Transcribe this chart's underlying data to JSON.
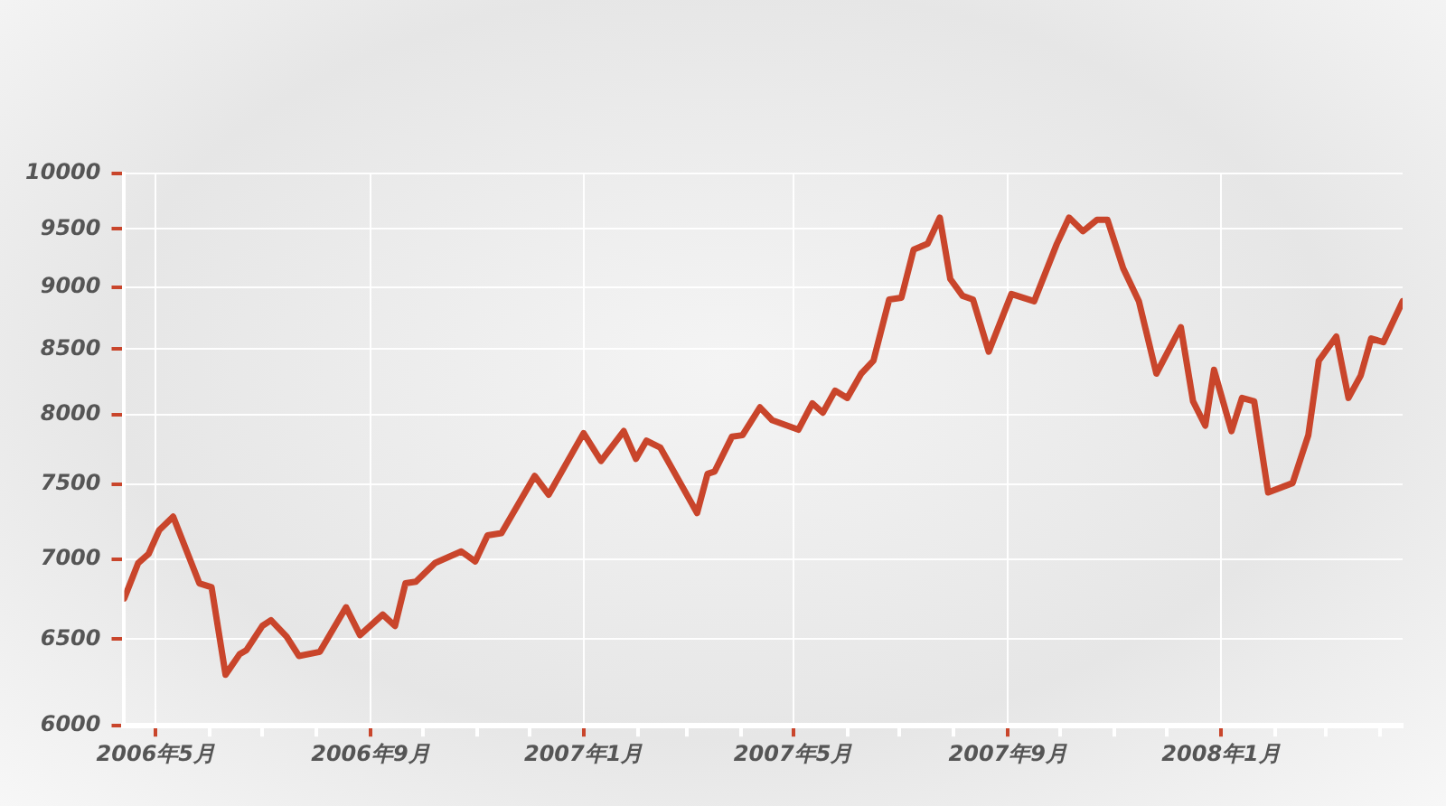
{
  "chart_data": {
    "type": "line",
    "log": "y",
    "grid": true,
    "legend": false,
    "marker": "none",
    "line_style": "solid",
    "xlim": [
      "2006-04-13",
      "2008-04-14"
    ],
    "ylim": [
      6000,
      10000
    ],
    "yticks": [
      6000,
      6500,
      7000,
      7500,
      8000,
      8500,
      9000,
      9500,
      10000
    ],
    "xticks": [
      {
        "value": "2006-05-01",
        "label": "2006年5月"
      },
      {
        "value": "2006-06-01",
        "label": null
      },
      {
        "value": "2006-07-01",
        "label": null
      },
      {
        "value": "2006-08-01",
        "label": null
      },
      {
        "value": "2006-09-01",
        "label": "2006年9月"
      },
      {
        "value": "2006-10-01",
        "label": null
      },
      {
        "value": "2006-11-01",
        "label": null
      },
      {
        "value": "2006-12-01",
        "label": null
      },
      {
        "value": "2007-01-01",
        "label": "2007年1月"
      },
      {
        "value": "2007-02-01",
        "label": null
      },
      {
        "value": "2007-03-01",
        "label": null
      },
      {
        "value": "2007-04-01",
        "label": null
      },
      {
        "value": "2007-05-01",
        "label": "2007年5月"
      },
      {
        "value": "2007-06-01",
        "label": null
      },
      {
        "value": "2007-07-01",
        "label": null
      },
      {
        "value": "2007-08-01",
        "label": null
      },
      {
        "value": "2007-09-01",
        "label": "2007年9月"
      },
      {
        "value": "2007-10-01",
        "label": null
      },
      {
        "value": "2007-11-01",
        "label": null
      },
      {
        "value": "2007-12-01",
        "label": null
      },
      {
        "value": "2008-01-01",
        "label": "2008年1月"
      },
      {
        "value": "2008-02-01",
        "label": null
      },
      {
        "value": "2008-03-01",
        "label": null
      },
      {
        "value": "2008-04-01",
        "label": null
      }
    ],
    "x": [
      "2006-04-13",
      "2006-04-21",
      "2006-04-27",
      "2006-05-03",
      "2006-05-11",
      "2006-05-26",
      "2006-06-02",
      "2006-06-10",
      "2006-06-18",
      "2006-06-22",
      "2006-07-01",
      "2006-07-06",
      "2006-07-15",
      "2006-07-22",
      "2006-08-03",
      "2006-08-18",
      "2006-08-26",
      "2006-09-08",
      "2006-09-15",
      "2006-09-21",
      "2006-09-27",
      "2006-10-08",
      "2006-10-23",
      "2006-10-31",
      "2006-11-07",
      "2006-11-15",
      "2006-12-04",
      "2006-12-12",
      "2007-01-01",
      "2007-01-11",
      "2007-01-24",
      "2007-01-31",
      "2007-02-06",
      "2007-02-14",
      "2007-03-07",
      "2007-03-13",
      "2007-03-17",
      "2007-03-27",
      "2007-04-02",
      "2007-04-12",
      "2007-04-19",
      "2007-05-04",
      "2007-05-12",
      "2007-05-18",
      "2007-05-25",
      "2007-06-01",
      "2007-06-09",
      "2007-06-16",
      "2007-06-25",
      "2007-07-02",
      "2007-07-09",
      "2007-07-17",
      "2007-07-24",
      "2007-07-30",
      "2007-08-06",
      "2007-08-12",
      "2007-08-21",
      "2007-09-03",
      "2007-09-16",
      "2007-09-29",
      "2007-10-06",
      "2007-10-14",
      "2007-10-22",
      "2007-10-28",
      "2007-11-06",
      "2007-11-15",
      "2007-11-25",
      "2007-12-09",
      "2007-12-16",
      "2007-12-23",
      "2007-12-28",
      "2008-01-07",
      "2008-01-13",
      "2008-01-20",
      "2008-01-28",
      "2008-02-11",
      "2008-02-20",
      "2008-02-26",
      "2008-03-07",
      "2008-03-14",
      "2008-03-21",
      "2008-03-27",
      "2008-04-03",
      "2008-04-14"
    ],
    "series": [
      {
        "color": "#c9452b",
        "values": [
          6750,
          6975,
          7035,
          7190,
          7280,
          6845,
          6820,
          6290,
          6410,
          6435,
          6580,
          6615,
          6515,
          6400,
          6425,
          6695,
          6525,
          6650,
          6580,
          6845,
          6855,
          6975,
          7050,
          6985,
          7155,
          7170,
          7560,
          7430,
          7865,
          7665,
          7880,
          7680,
          7810,
          7760,
          7305,
          7575,
          7590,
          7840,
          7850,
          8055,
          7960,
          7890,
          8085,
          8015,
          8180,
          8125,
          8310,
          8410,
          8900,
          8915,
          9320,
          9370,
          9600,
          9070,
          8930,
          8900,
          8480,
          8945,
          8885,
          9370,
          9600,
          9480,
          9580,
          9580,
          9160,
          8885,
          8310,
          8675,
          8100,
          7920,
          8340,
          7880,
          8125,
          8100,
          7445,
          7510,
          7850,
          8410,
          8600,
          8125,
          8295,
          8585,
          8555,
          8885
        ]
      }
    ]
  }
}
